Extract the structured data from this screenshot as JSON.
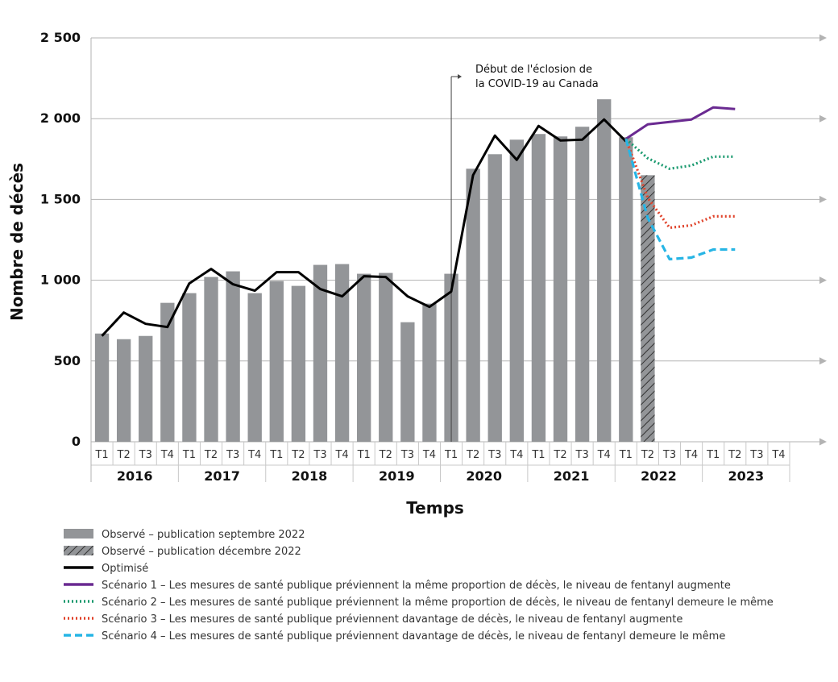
{
  "chart_data": {
    "type": "bar",
    "ylabel": "Nombre de décès",
    "xlabel": "Temps",
    "ylim": [
      0,
      2500
    ],
    "yticks": [
      0,
      500,
      1000,
      1500,
      2000,
      2500
    ],
    "ytick_labels": [
      "0",
      "500",
      "1 000",
      "1 500",
      "2 000",
      "2 500"
    ],
    "grid": true,
    "quarters": [
      "T1",
      "T2",
      "T3",
      "T4"
    ],
    "years": [
      "2016",
      "2017",
      "2018",
      "2019",
      "2020",
      "2021",
      "2022",
      "2023"
    ],
    "annotation": {
      "lines": [
        "Début de l'éclosion de",
        "la COVID-19 au Canada"
      ],
      "at_index": 16.5
    },
    "series": [
      {
        "name": "Observé – publication septembre 2022",
        "kind": "bar",
        "color": "#939598",
        "values": [
          670,
          635,
          655,
          860,
          920,
          1020,
          1055,
          920,
          995,
          965,
          1095,
          1100,
          1040,
          1045,
          740,
          855,
          1040,
          1690,
          1780,
          1870,
          1905,
          1890,
          1950,
          2120,
          1885
        ]
      },
      {
        "name": "Observé – publication décembre 2022",
        "kind": "bar-hatched",
        "color": "#939598",
        "values": [
          null,
          null,
          null,
          null,
          null,
          null,
          null,
          null,
          null,
          null,
          null,
          null,
          null,
          null,
          null,
          null,
          null,
          null,
          null,
          null,
          null,
          null,
          null,
          null,
          null,
          1650
        ]
      },
      {
        "name": "Optimisé",
        "kind": "line",
        "color": "#000000",
        "dash": "solid",
        "values": [
          655,
          800,
          730,
          710,
          980,
          1070,
          975,
          935,
          1050,
          1050,
          945,
          900,
          1025,
          1020,
          900,
          835,
          930,
          1650,
          1895,
          1745,
          1955,
          1865,
          1870,
          1995,
          1860
        ]
      },
      {
        "name": "Scénario 1 – Les mesures de santé publique préviennent la même proportion de décès, le niveau de fentanyl augmente",
        "kind": "line",
        "color": "#6a2a91",
        "dash": "solid",
        "values": [
          null,
          null,
          null,
          null,
          null,
          null,
          null,
          null,
          null,
          null,
          null,
          null,
          null,
          null,
          null,
          null,
          null,
          null,
          null,
          null,
          null,
          null,
          null,
          null,
          1875,
          1965,
          1980,
          1995,
          2070,
          2060
        ]
      },
      {
        "name": "Scénario 2 – Les mesures de santé publique préviennent la même proportion de décès, le niveau de fentanyl demeure le même",
        "kind": "line",
        "color": "#1a9a6f",
        "dash": "dotted",
        "values": [
          null,
          null,
          null,
          null,
          null,
          null,
          null,
          null,
          null,
          null,
          null,
          null,
          null,
          null,
          null,
          null,
          null,
          null,
          null,
          null,
          null,
          null,
          null,
          null,
          1875,
          1755,
          1690,
          1710,
          1765,
          1765
        ]
      },
      {
        "name": "Scénario 3 – Les mesures de santé publique préviennent davantage de décès, le niveau de fentanyl augmente",
        "kind": "line",
        "color": "#e0442c",
        "dash": "dotted",
        "values": [
          null,
          null,
          null,
          null,
          null,
          null,
          null,
          null,
          null,
          null,
          null,
          null,
          null,
          null,
          null,
          null,
          null,
          null,
          null,
          null,
          null,
          null,
          null,
          null,
          1875,
          1510,
          1325,
          1340,
          1395,
          1395
        ]
      },
      {
        "name": "Scénario 4 – Les mesures de santé publique préviennent davantage de décès, le niveau de fentanyl demeure le même",
        "kind": "line",
        "color": "#27b5e5",
        "dash": "dashed",
        "values": [
          null,
          null,
          null,
          null,
          null,
          null,
          null,
          null,
          null,
          null,
          null,
          null,
          null,
          null,
          null,
          null,
          null,
          null,
          null,
          null,
          null,
          null,
          null,
          null,
          1875,
          1385,
          1130,
          1140,
          1190,
          1190
        ]
      }
    ]
  }
}
